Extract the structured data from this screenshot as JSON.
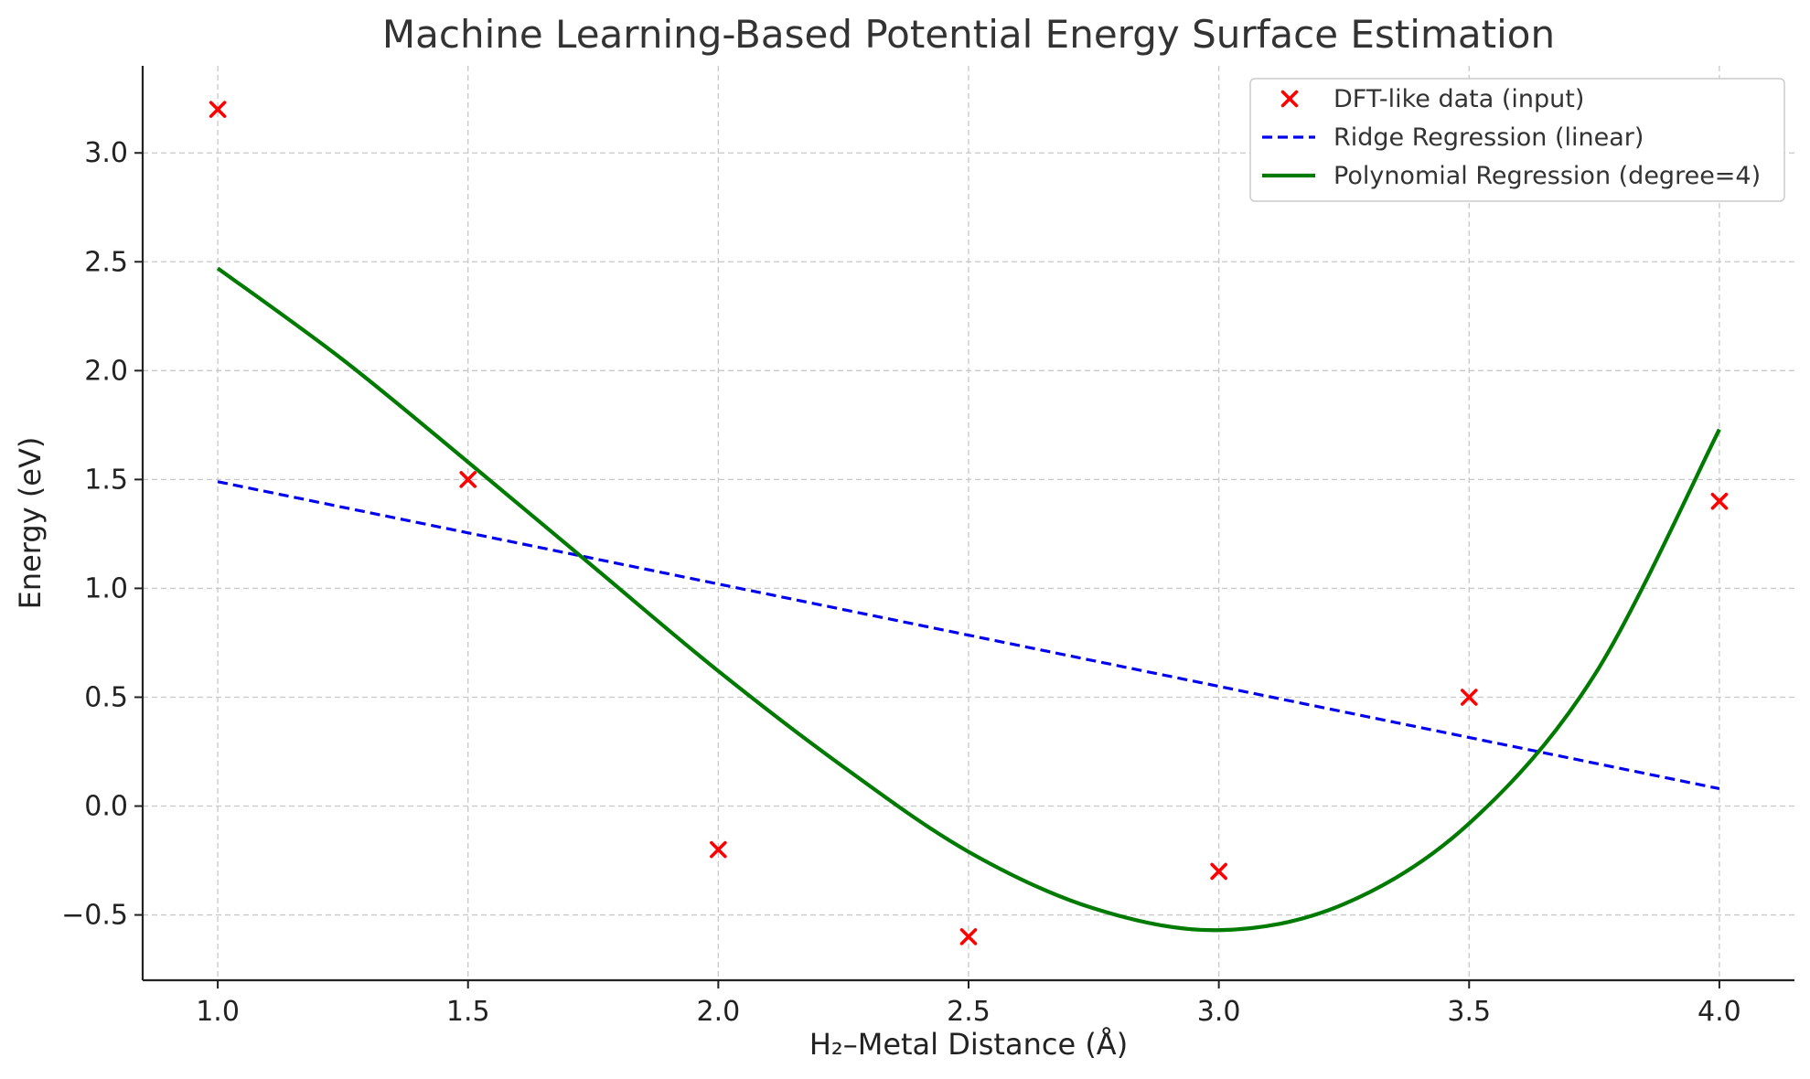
{
  "chart_data": {
    "type": "line",
    "title": "Machine Learning-Based Potential Energy Surface Estimation",
    "xlabel": "H₂–Metal Distance (Å)",
    "ylabel": "Energy (eV)",
    "xlim": [
      0.85,
      4.15
    ],
    "ylim": [
      -0.8,
      3.4
    ],
    "grid": true,
    "legend_position": "top-right",
    "x_ticks": [
      {
        "value": 1.0,
        "label": "1.0"
      },
      {
        "value": 1.5,
        "label": "1.5"
      },
      {
        "value": 2.0,
        "label": "2.0"
      },
      {
        "value": 2.5,
        "label": "2.5"
      },
      {
        "value": 3.0,
        "label": "3.0"
      },
      {
        "value": 3.5,
        "label": "3.5"
      },
      {
        "value": 4.0,
        "label": "4.0"
      }
    ],
    "y_ticks": [
      {
        "value": -0.5,
        "label": "−0.5"
      },
      {
        "value": 0.0,
        "label": "0.0"
      },
      {
        "value": 0.5,
        "label": "0.5"
      },
      {
        "value": 1.0,
        "label": "1.0"
      },
      {
        "value": 1.5,
        "label": "1.5"
      },
      {
        "value": 2.0,
        "label": "2.0"
      },
      {
        "value": 2.5,
        "label": "2.5"
      },
      {
        "value": 3.0,
        "label": "3.0"
      }
    ],
    "series": [
      {
        "name": "DFT-like data (input)",
        "kind": "scatter",
        "marker": "x",
        "color": "#ff0000",
        "x": [
          1.0,
          1.5,
          2.0,
          2.5,
          3.0,
          3.5,
          4.0
        ],
        "y": [
          3.2,
          1.5,
          -0.2,
          -0.6,
          -0.3,
          0.5,
          1.4
        ]
      },
      {
        "name": "Ridge Regression (linear)",
        "kind": "line",
        "style": "dashed",
        "color": "#0000ee",
        "x": [
          1.0,
          4.0
        ],
        "y": [
          1.49,
          0.08
        ]
      },
      {
        "name": "Polynomial Regression (degree=4)",
        "kind": "line",
        "style": "solid",
        "color": "#007a00",
        "x": [
          1.0,
          1.25,
          1.5,
          1.75,
          2.0,
          2.25,
          2.5,
          2.75,
          3.0,
          3.25,
          3.5,
          3.75,
          4.0
        ],
        "y": [
          2.47,
          2.05,
          1.58,
          1.1,
          0.62,
          0.18,
          -0.21,
          -0.47,
          -0.57,
          -0.45,
          -0.08,
          0.6,
          1.73
        ]
      }
    ]
  }
}
